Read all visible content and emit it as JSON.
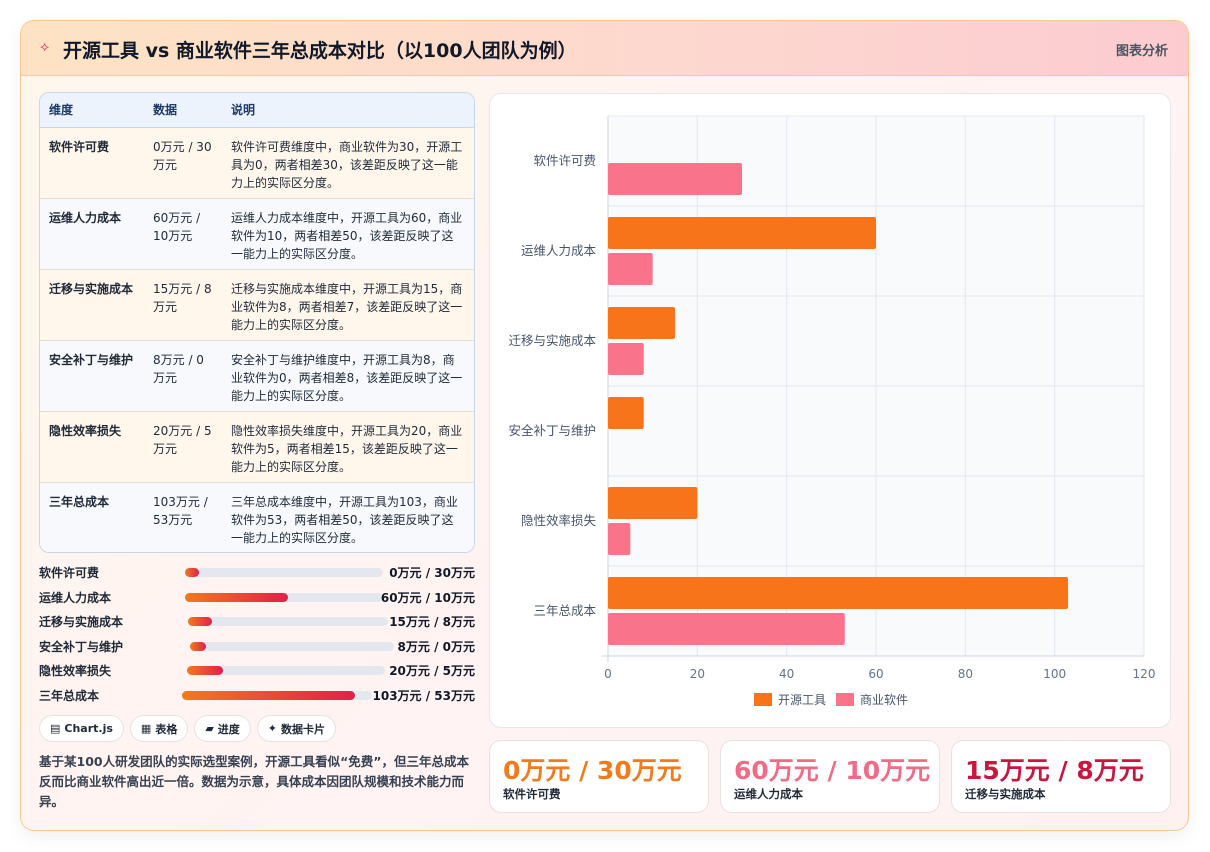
{
  "header": {
    "title": "开源工具 vs 商业软件三年总成本对比（以100人团队为例）",
    "tag": "图表分析",
    "icon": "sparkle-icon"
  },
  "table": {
    "columns": [
      "维度",
      "数据",
      "说明"
    ],
    "rows": [
      {
        "dim": "软件许可费",
        "data": "0万元 / 30万元",
        "desc": "软件许可费维度中，商业软件为30，开源工具为0，两者相差30，该差距反映了这一能力上的实际区分度。"
      },
      {
        "dim": "运维人力成本",
        "data": "60万元 / 10万元",
        "desc": "运维人力成本维度中，开源工具为60，商业软件为10，两者相差50，该差距反映了这一能力上的实际区分度。"
      },
      {
        "dim": "迁移与实施成本",
        "data": "15万元 / 8万元",
        "desc": "迁移与实施成本维度中，开源工具为15，商业软件为8，两者相差7，该差距反映了这一能力上的实际区分度。"
      },
      {
        "dim": "安全补丁与维护",
        "data": "8万元 / 0万元",
        "desc": "安全补丁与维护维度中，开源工具为8，商业软件为0，两者相差8，该差距反映了这一能力上的实际区分度。"
      },
      {
        "dim": "隐性效率损失",
        "data": "20万元 / 5万元",
        "desc": "隐性效率损失维度中，开源工具为20，商业软件为5，两者相差15，该差距反映了这一能力上的实际区分度。"
      },
      {
        "dim": "三年总成本",
        "data": "103万元 / 53万元",
        "desc": "三年总成本维度中，开源工具为103，商业软件为53，两者相差50，该差距反映了这一能力上的实际区分度。"
      }
    ]
  },
  "progress": [
    {
      "label": "软件许可费",
      "value": "0万元 / 30万元",
      "fill": 0.07
    },
    {
      "label": "运维人力成本",
      "value": "60万元 / 10万元",
      "fill": 0.52
    },
    {
      "label": "迁移与实施成本",
      "value": "15万元 / 8万元",
      "fill": 0.12
    },
    {
      "label": "安全补丁与维护",
      "value": "8万元 / 0万元",
      "fill": 0.08
    },
    {
      "label": "隐性效率损失",
      "value": "20万元 / 5万元",
      "fill": 0.18
    },
    {
      "label": "三年总成本",
      "value": "103万元 / 53万元",
      "fill": 0.91
    }
  ],
  "chips": [
    {
      "icon": "chart-icon",
      "glyph": "▤",
      "label": "Chart.js"
    },
    {
      "icon": "table-icon",
      "glyph": "▦",
      "label": "表格"
    },
    {
      "icon": "progress-icon",
      "glyph": "▰",
      "label": "进度"
    },
    {
      "icon": "sparkle-icon",
      "glyph": "✦",
      "label": "数据卡片"
    }
  ],
  "note": "基于某100人研发团队的实际选型案例，开源工具看似“免费”，但三年总成本反而比商业软件高出近一倍。数据为示意，具体成本因团队规模和技术能力而异。",
  "kpis": [
    {
      "value": "0万元 / 30万元",
      "label": "软件许可费",
      "color": "#f07a1e"
    },
    {
      "value": "60万元 / 10万元",
      "label": "运维人力成本",
      "color": "#f06b85"
    },
    {
      "value": "15万元 / 8万元",
      "label": "迁移与实施成本",
      "color": "#c8173e"
    }
  ],
  "chart_data": {
    "type": "bar",
    "orientation": "horizontal",
    "categories": [
      "软件许可费",
      "运维人力成本",
      "迁移与实施成本",
      "安全补丁与维护",
      "隐性效率损失",
      "三年总成本"
    ],
    "series": [
      {
        "name": "开源工具",
        "values": [
          0,
          60,
          15,
          8,
          20,
          103
        ],
        "color": "#f7741a"
      },
      {
        "name": "商业软件",
        "values": [
          30,
          10,
          8,
          0,
          5,
          53
        ],
        "color": "#f9738a"
      }
    ],
    "xlim": [
      0,
      120
    ],
    "xticks": [
      0,
      20,
      40,
      60,
      80,
      100,
      120
    ],
    "grid": true,
    "legend": "bottom"
  }
}
